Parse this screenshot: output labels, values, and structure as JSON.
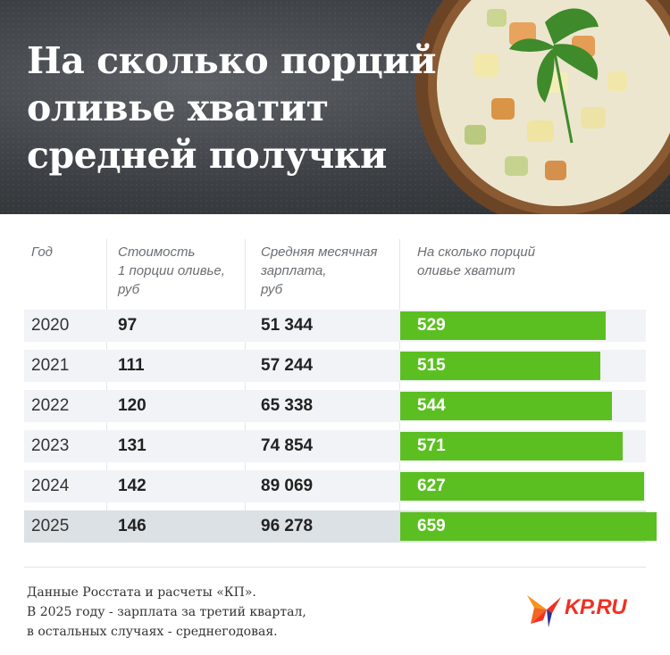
{
  "title_lines": [
    "На сколько порций",
    "оливье хватит",
    "средней получки"
  ],
  "columns": {
    "year": [
      "Год"
    ],
    "price": [
      "Стоимость",
      "1 порции оливье,",
      "руб"
    ],
    "salary": [
      "Средняя месячная",
      "зарплата,",
      "руб"
    ],
    "portions": [
      "На сколько порций",
      "оливье хватит"
    ]
  },
  "chart_data": {
    "type": "table",
    "rows": [
      {
        "year": "2020",
        "price": "97",
        "salary": "51 344",
        "portions": "529"
      },
      {
        "year": "2021",
        "price": "111",
        "salary": "57 244",
        "portions": "515"
      },
      {
        "year": "2022",
        "price": "120",
        "salary": "65 338",
        "portions": "544"
      },
      {
        "year": "2023",
        "price": "131",
        "salary": "74 854",
        "portions": "571"
      },
      {
        "year": "2024",
        "price": "142",
        "salary": "89 069",
        "portions": "627"
      },
      {
        "year": "2025",
        "price": "146",
        "salary": "96 278",
        "portions": "659"
      }
    ],
    "highlight_row": "2025",
    "bar_color": "#5cbf21"
  },
  "footnote": [
    "Данные Росстата и расчеты «КП».",
    "В 2025 году - зарплата за третий квартал,",
    "в остальных случаях - среднегодовая."
  ],
  "logo_text": "KP.RU"
}
